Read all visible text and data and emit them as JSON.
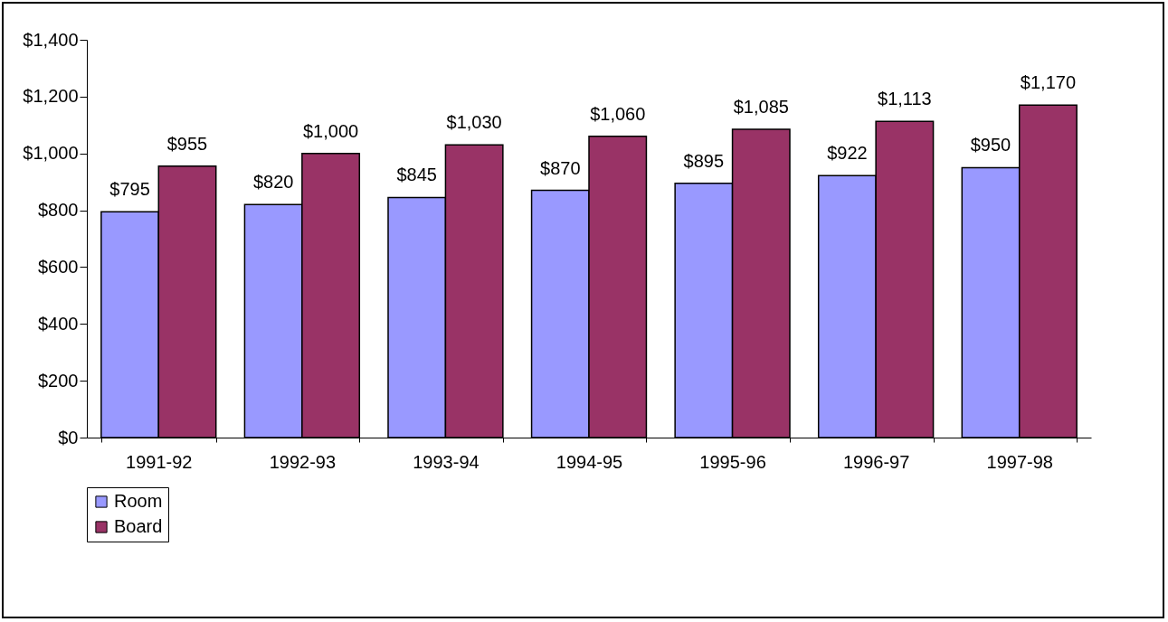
{
  "chart_data": {
    "type": "bar",
    "categories": [
      "1991-92",
      "1992-93",
      "1993-94",
      "1994-95",
      "1995-96",
      "1996-97",
      "1997-98"
    ],
    "series": [
      {
        "name": "Room",
        "color": "#9999ff",
        "values": [
          795,
          820,
          845,
          870,
          895,
          922,
          950
        ],
        "value_labels": [
          "$795",
          "$820",
          "$845",
          "$870",
          "$895",
          "$922",
          "$950"
        ]
      },
      {
        "name": "Board",
        "color": "#993366",
        "values": [
          955,
          1000,
          1030,
          1060,
          1085,
          1113,
          1170
        ],
        "value_labels": [
          "$955",
          "$1,000",
          "$1,030",
          "$1,060",
          "$1,085",
          "$1,113",
          "$1,170"
        ]
      }
    ],
    "ylim": [
      0,
      1400
    ],
    "yticks": [
      {
        "value": 0,
        "label": "$0"
      },
      {
        "value": 200,
        "label": "$200"
      },
      {
        "value": 400,
        "label": "$400"
      },
      {
        "value": 600,
        "label": "$600"
      },
      {
        "value": 800,
        "label": "$800"
      },
      {
        "value": 1000,
        "label": "$1,000"
      },
      {
        "value": 1200,
        "label": "$1,200"
      },
      {
        "value": 1400,
        "label": "$1,400"
      }
    ],
    "grid": false,
    "legend": "bottom"
  }
}
